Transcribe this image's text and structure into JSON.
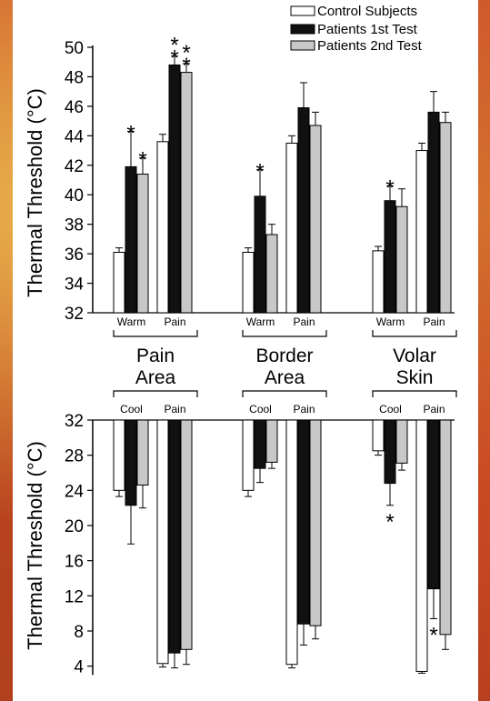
{
  "chart_data": [
    {
      "type": "bar",
      "ylabel": "Thermal Threshold (°C)",
      "ylim": [
        32,
        50
      ],
      "yticks": [
        32,
        34,
        36,
        38,
        40,
        42,
        44,
        46,
        48,
        50
      ],
      "legend": [
        "Control Subjects",
        "Patients 1st Test",
        "Patients 2nd Test"
      ],
      "legend_position": "top-right",
      "groups": [
        {
          "label": "Pain Area",
          "categories": [
            "Warm",
            "Pain"
          ],
          "series": [
            {
              "name": "Control Subjects",
              "values": [
                36.1,
                43.6
              ],
              "errors": [
                0.3,
                0.5
              ]
            },
            {
              "name": "Patients 1st Test",
              "values": [
                41.9,
                48.8
              ],
              "errors": [
                2.4,
                0.6
              ]
            },
            {
              "name": "Patients 2nd Test",
              "values": [
                41.4,
                48.3
              ],
              "errors": [
                1.1,
                0.6
              ]
            }
          ],
          "annotations": [
            {
              "category": "Warm",
              "series": "Patients 1st Test",
              "text": "*"
            },
            {
              "category": "Warm",
              "series": "Patients 2nd Test",
              "text": "*"
            },
            {
              "category": "Pain",
              "series": "Patients 1st Test",
              "text": "**"
            },
            {
              "category": "Pain",
              "series": "Patients 2nd Test",
              "text": "**"
            }
          ]
        },
        {
          "label": "Border Area",
          "categories": [
            "Warm",
            "Pain"
          ],
          "series": [
            {
              "name": "Control Subjects",
              "values": [
                36.1,
                43.5
              ],
              "errors": [
                0.3,
                0.5
              ]
            },
            {
              "name": "Patients 1st Test",
              "values": [
                39.9,
                45.9
              ],
              "errors": [
                1.8,
                1.7
              ]
            },
            {
              "name": "Patients 2nd Test",
              "values": [
                37.3,
                44.7
              ],
              "errors": [
                0.7,
                0.9
              ]
            }
          ],
          "annotations": [
            {
              "category": "Warm",
              "series": "Patients 1st Test",
              "text": "*"
            }
          ]
        },
        {
          "label": "Volar Skin",
          "categories": [
            "Warm",
            "Pain"
          ],
          "series": [
            {
              "name": "Control Subjects",
              "values": [
                36.2,
                43.0
              ],
              "errors": [
                0.3,
                0.5
              ]
            },
            {
              "name": "Patients 1st Test",
              "values": [
                39.6,
                45.6
              ],
              "errors": [
                1.0,
                1.4
              ]
            },
            {
              "name": "Patients 2nd Test",
              "values": [
                39.2,
                44.9
              ],
              "errors": [
                1.2,
                0.7
              ]
            }
          ],
          "annotations": [
            {
              "category": "Warm",
              "series": "Patients 1st Test",
              "text": "*"
            }
          ]
        }
      ]
    },
    {
      "type": "bar",
      "ylabel": "Thermal Threshold (°C)",
      "ylim": [
        2,
        32
      ],
      "yticks": [
        4,
        8,
        12,
        16,
        20,
        24,
        28,
        32
      ],
      "groups": [
        {
          "label": "Pain Area",
          "categories": [
            "Cool",
            "Pain"
          ],
          "series": [
            {
              "name": "Control Subjects",
              "values": [
                24.0,
                4.3
              ],
              "errors": [
                0.7,
                0.4
              ]
            },
            {
              "name": "Patients 1st Test",
              "values": [
                22.3,
                5.5
              ],
              "errors": [
                4.4,
                1.7
              ]
            },
            {
              "name": "Patients 2nd Test",
              "values": [
                24.6,
                5.9
              ],
              "errors": [
                2.6,
                1.7
              ]
            }
          ]
        },
        {
          "label": "Border Area",
          "categories": [
            "Cool",
            "Pain"
          ],
          "series": [
            {
              "name": "Control Subjects",
              "values": [
                24.0,
                4.2
              ],
              "errors": [
                0.7,
                0.4
              ]
            },
            {
              "name": "Patients 1st Test",
              "values": [
                26.5,
                8.8
              ],
              "errors": [
                1.6,
                2.4
              ]
            },
            {
              "name": "Patients 2nd Test",
              "values": [
                27.2,
                8.6
              ],
              "errors": [
                0.7,
                1.5
              ]
            }
          ]
        },
        {
          "label": "Volar Skin",
          "categories": [
            "Cool",
            "Pain"
          ],
          "series": [
            {
              "name": "Control Subjects",
              "values": [
                28.5,
                3.4
              ],
              "errors": [
                0.5,
                0.2
              ]
            },
            {
              "name": "Patients 1st Test",
              "values": [
                24.8,
                12.8
              ],
              "errors": [
                2.5,
                3.4
              ]
            },
            {
              "name": "Patients 2nd Test",
              "values": [
                27.1,
                7.6
              ],
              "errors": [
                0.8,
                1.7
              ]
            }
          ],
          "annotations": [
            {
              "category": "Cool",
              "series": "Patients 1st Test",
              "text": "*"
            },
            {
              "category": "Pain",
              "series": "Patients 1st Test",
              "text": "*"
            }
          ]
        }
      ]
    }
  ]
}
